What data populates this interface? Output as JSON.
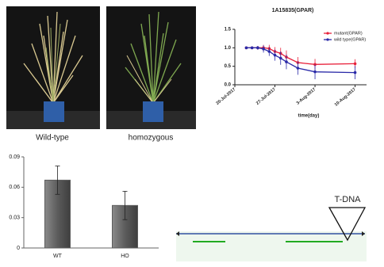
{
  "photos": {
    "labels": [
      "Wild-type",
      "homozygous"
    ]
  },
  "gene_map": {
    "insert_label": "T-DNA"
  },
  "chart_data": [
    {
      "type": "line",
      "title": "1A15835(GPAR)",
      "x_label": "time(day)",
      "x": [
        "2017-07-22",
        "2017-07-23",
        "2017-07-24",
        "2017-07-25",
        "2017-07-26",
        "2017-07-27",
        "2017-07-28",
        "2017-07-29",
        "2017-07-31",
        "2017-08-03",
        "2017-08-10"
      ],
      "xlim": [
        "2017-07-20",
        "2017-08-12"
      ],
      "xticks": [
        {
          "value": "2017-07-20",
          "label": "20-Jul-2017"
        },
        {
          "value": "2017-07-27",
          "label": "27-Jul-2017"
        },
        {
          "value": "2017-08-03",
          "label": "3-Aug-2017"
        },
        {
          "value": "2017-08-10",
          "label": "10-Aug-2017"
        }
      ],
      "ylim": [
        0,
        1.5
      ],
      "yticks": [
        {
          "value": 0,
          "label": "0.0"
        },
        {
          "value": 0.5,
          "label": "0.5"
        },
        {
          "value": 1,
          "label": "1.0"
        },
        {
          "value": 1.5,
          "label": "1.5"
        }
      ],
      "legend": "upper right",
      "series": [
        {
          "name": "mutant(GPAR)",
          "color": "#e8203a",
          "values": [
            1.0,
            1.0,
            1.0,
            1.0,
            0.98,
            0.9,
            0.85,
            0.75,
            0.6,
            0.55,
            0.57
          ],
          "errors": [
            0.02,
            0.03,
            0.05,
            0.08,
            0.1,
            0.12,
            0.15,
            0.18,
            0.15,
            0.15,
            0.12
          ]
        },
        {
          "name": "wild type(GPAR)",
          "color": "#2a2aa8",
          "values": [
            1.0,
            1.0,
            1.0,
            0.97,
            0.9,
            0.8,
            0.72,
            0.62,
            0.45,
            0.35,
            0.33
          ],
          "errors": [
            0.02,
            0.03,
            0.05,
            0.1,
            0.12,
            0.15,
            0.18,
            0.2,
            0.18,
            0.2,
            0.18
          ]
        }
      ]
    },
    {
      "type": "bar",
      "categories": [
        "WT",
        "HO"
      ],
      "values": [
        0.067,
        0.042
      ],
      "errors": [
        0.014,
        0.014
      ],
      "color": "#5c5c5c",
      "ylim": [
        0,
        0.09
      ],
      "yticks": [
        0,
        0.03,
        0.06,
        0.09
      ]
    }
  ]
}
